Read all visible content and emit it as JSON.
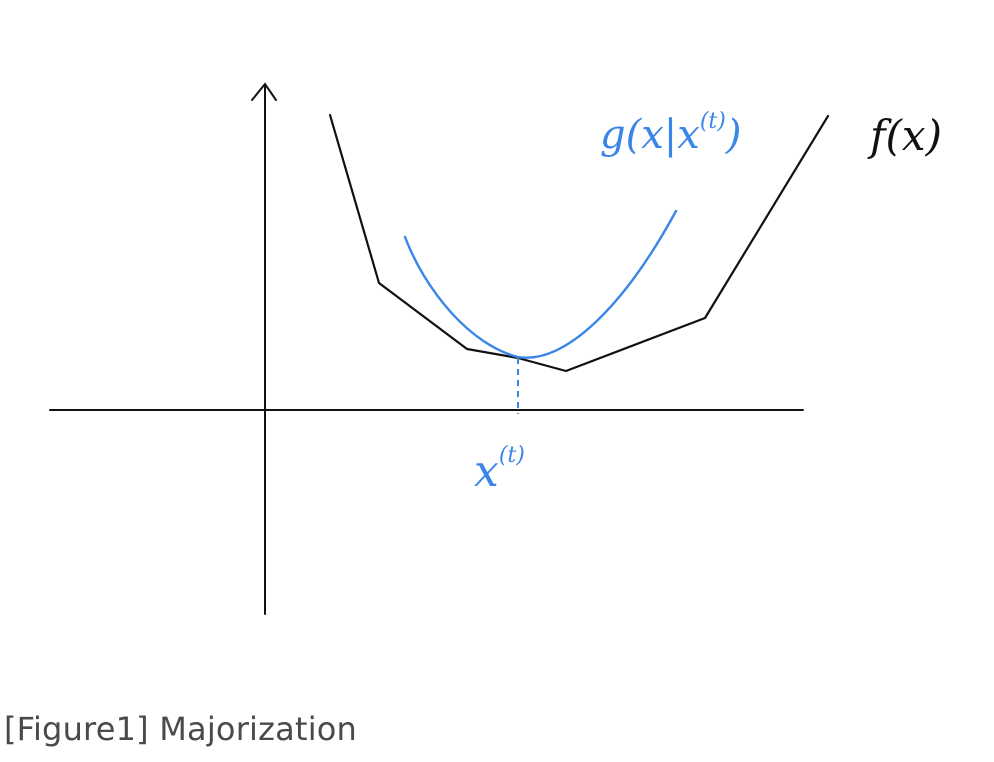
{
  "labels": {
    "f_label": "f(x)",
    "g_label_main": "g(x|x",
    "g_label_sup": "(t)",
    "g_label_close": ")",
    "xt_label_main": "x",
    "xt_label_sup": "(t)"
  },
  "caption": "[Figure1] Majorization",
  "colors": {
    "primary_curve": "#111111",
    "majorizer": "#3a86e8",
    "axes": "#111111",
    "caption": "#4a4a4a"
  }
}
